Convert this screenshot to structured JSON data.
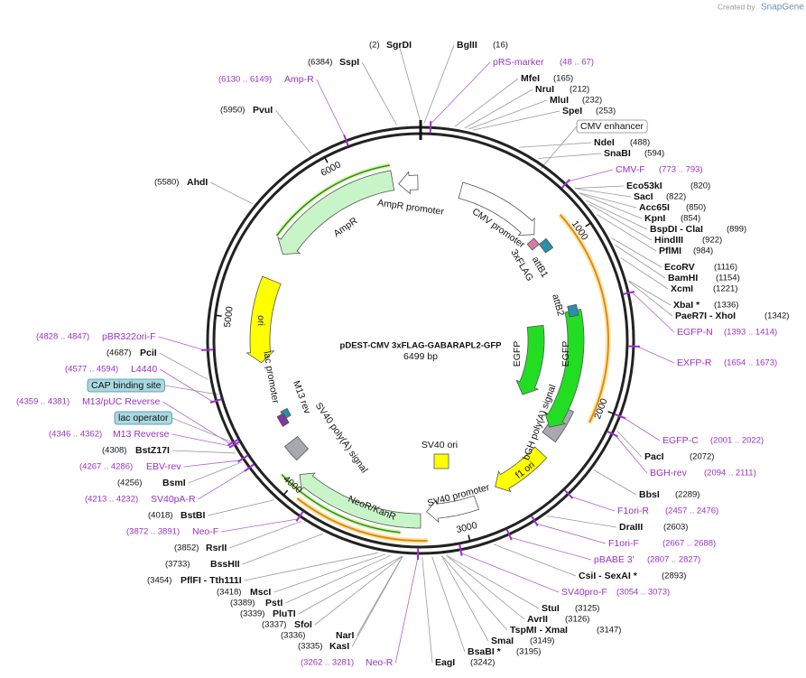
{
  "header": {
    "created_by": "Created by",
    "brand": "SnapGene"
  },
  "map": {
    "name": "pDEST-CMV 3xFLAG-GABARAPL2-GFP",
    "size": "6499 bp",
    "ticks": [
      1000,
      2000,
      3000,
      4000,
      5000,
      6000
    ]
  },
  "sites": [
    {
      "name": "SgrDI",
      "position": "(2)"
    },
    {
      "name": "BglII",
      "position": "(16)"
    },
    {
      "name": "MfeI",
      "position": "(165)"
    },
    {
      "name": "NruI",
      "position": "(212)"
    },
    {
      "name": "MluI",
      "position": "(232)"
    },
    {
      "name": "SpeI",
      "position": "(253)"
    },
    {
      "name": "NdeI",
      "position": "(488)"
    },
    {
      "name": "SnaBI",
      "position": "(594)"
    },
    {
      "name": "Eco53kI",
      "position": "(820)"
    },
    {
      "name": "SacI",
      "position": "(822)"
    },
    {
      "name": "Acc65I",
      "position": "(850)"
    },
    {
      "name": "KpnI",
      "position": "(854)"
    },
    {
      "name": "BspDI - ClaI",
      "position": "(899)"
    },
    {
      "name": "HindIII",
      "position": "(922)"
    },
    {
      "name": "PflMI",
      "position": "(984)"
    },
    {
      "name": "EcoRV",
      "position": "(1116)"
    },
    {
      "name": "BamHI",
      "position": "(1154)"
    },
    {
      "name": "XcmI",
      "position": "(1221)"
    },
    {
      "name": "XbaI *",
      "position": "(1336)"
    },
    {
      "name": "PaeR7I - XhoI",
      "position": "(1342)"
    },
    {
      "name": "PacI",
      "position": "(2072)"
    },
    {
      "name": "BbsI",
      "position": "(2289)"
    },
    {
      "name": "DraIII",
      "position": "(2603)"
    },
    {
      "name": "CsiI - SexAI *",
      "position": "(2893)"
    },
    {
      "name": "StuI",
      "position": "(3125)"
    },
    {
      "name": "AvrII",
      "position": "(3126)"
    },
    {
      "name": "TspMI - XmaI",
      "position": "(3147)"
    },
    {
      "name": "SmaI",
      "position": "(3149)"
    },
    {
      "name": "BsaBI *",
      "position": "(3195)"
    },
    {
      "name": "EagI",
      "position": "(3242)"
    },
    {
      "name": "KasI",
      "position": "(3335)"
    },
    {
      "name": "NarI",
      "position": "(3336)"
    },
    {
      "name": "SfoI",
      "position": "(3337)"
    },
    {
      "name": "PluTI",
      "position": "(3339)"
    },
    {
      "name": "PstI",
      "position": "(3389)"
    },
    {
      "name": "MscI",
      "position": "(3418)"
    },
    {
      "name": "PflFI - Tth111I",
      "position": "(3454)"
    },
    {
      "name": "BssHII",
      "position": "(3733)"
    },
    {
      "name": "RsrII",
      "position": "(3852)"
    },
    {
      "name": "BstBI",
      "position": "(4018)"
    },
    {
      "name": "BsmI",
      "position": "(4256)"
    },
    {
      "name": "BstZ17I",
      "position": "(4308)"
    },
    {
      "name": "PciI",
      "position": "(4687)"
    },
    {
      "name": "AhdI",
      "position": "(5580)"
    },
    {
      "name": "PvuI",
      "position": "(5950)"
    },
    {
      "name": "SspI",
      "position": "(6384)"
    }
  ],
  "primers": [
    {
      "name": "pRS-marker",
      "position": "(48 .. 67)"
    },
    {
      "name": "CMV-F",
      "position": "(773 .. 793)"
    },
    {
      "name": "EGFP-N",
      "position": "(1393 .. 1414)"
    },
    {
      "name": "EXFP-R",
      "position": "(1654 .. 1673)"
    },
    {
      "name": "EGFP-C",
      "position": "(2001 .. 2022)"
    },
    {
      "name": "BGH-rev",
      "position": "(2094 .. 2111)"
    },
    {
      "name": "F1ori-R",
      "position": "(2457 .. 2476)"
    },
    {
      "name": "F1ori-F",
      "position": "(2667 .. 2688)"
    },
    {
      "name": "pBABE 3'",
      "position": "(2807 .. 2827)"
    },
    {
      "name": "SV40pro-F",
      "position": "(3054 .. 3073)"
    },
    {
      "name": "Neo-R",
      "position": "(3262 .. 3281)"
    },
    {
      "name": "Neo-F",
      "position": "(3872 .. 3891)"
    },
    {
      "name": "SV40pA-R",
      "position": "(4213 .. 4232)"
    },
    {
      "name": "EBV-rev",
      "position": "(4267 .. 4286)"
    },
    {
      "name": "M13 Reverse",
      "position": "(4346 .. 4362)"
    },
    {
      "name": "M13/pUC Reverse",
      "position": "(4359 .. 4381)"
    },
    {
      "name": "L4440",
      "position": "(4577 .. 4594)"
    },
    {
      "name": "pBR322ori-F",
      "position": "(4828 .. 4847)"
    },
    {
      "name": "Amp-R",
      "position": "(6130 .. 6149)"
    }
  ],
  "boxed_features": [
    "CMV enhancer",
    "CAP binding site",
    "lac operator"
  ],
  "features": [
    "AmpR promoter",
    "AmpR",
    "ori",
    "lac promoter",
    "M13 rev",
    "SV40 poly(A) signal",
    "NeoR/KanR",
    "SV40 promoter",
    "SV40 ori",
    "f1 ori",
    "bGH poly(A) signal",
    "EGFP",
    "EGFP",
    "attB2",
    "attB1",
    "3xFLAG",
    "CMV promoter"
  ]
}
